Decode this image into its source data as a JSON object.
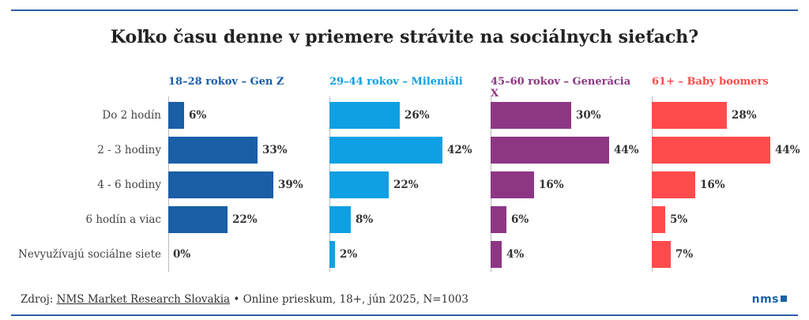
{
  "chart_data": {
    "type": "bar",
    "title": "Koľko času denne v priemere strávite na sociálnych sieťach?",
    "categories": [
      "Do 2 hodín",
      "2 - 3 hodiny",
      "4 - 6 hodiny",
      "6 hodín a viac",
      "Nevyužívajú sociálne siete"
    ],
    "series": [
      {
        "name": "18–28 rokov – Gen Z",
        "color": "#1a5ea6",
        "values": [
          6,
          33,
          39,
          22,
          0
        ]
      },
      {
        "name": "29–44 rokov – Mileniáli",
        "color": "#0ea0e2",
        "values": [
          26,
          42,
          22,
          8,
          2
        ]
      },
      {
        "name": "45–60 rokov – Generácia X",
        "color": "#8d3784",
        "values": [
          30,
          44,
          16,
          6,
          4
        ]
      },
      {
        "name": "61+ – Baby boomers",
        "color": "#ff4b4b",
        "values": [
          28,
          44,
          16,
          5,
          7
        ]
      }
    ],
    "value_suffix": "%",
    "xlim": [
      0,
      44
    ]
  },
  "footer": {
    "prefix": "Zdroj: ",
    "source": "NMS Market Research Slovakia",
    "details": " • Online prieskum, 18+, jún 2025, N=1003"
  },
  "logo": {
    "text": "nms"
  }
}
